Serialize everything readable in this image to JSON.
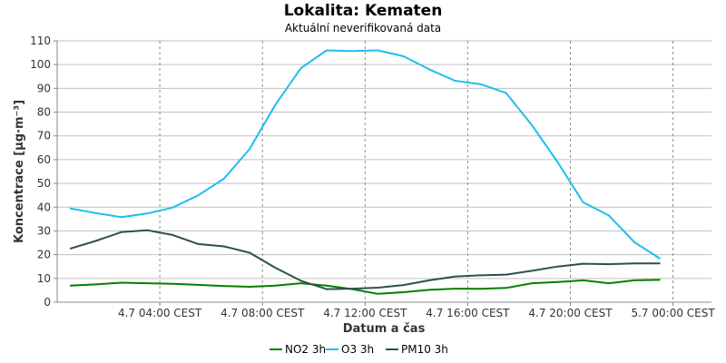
{
  "chart_data": {
    "type": "line",
    "title": "Lokalita: Kematen",
    "subtitle": "Aktuální neverifikovaná data",
    "xlabel": "Datum a čas",
    "ylabel": "Koncentrace [µg·m⁻³]",
    "ylim": [
      0,
      110
    ],
    "yticks": [
      0,
      10,
      20,
      30,
      40,
      50,
      60,
      70,
      80,
      90,
      100,
      110
    ],
    "xlim": [
      "2024-07-04 00:00",
      "2024-07-05 01:30"
    ],
    "xticks": [
      {
        "x": "2024-07-04 04:00",
        "label": "4.7 04:00 CEST"
      },
      {
        "x": "2024-07-04 08:00",
        "label": "4.7 08:00 CEST"
      },
      {
        "x": "2024-07-04 12:00",
        "label": "4.7 12:00 CEST"
      },
      {
        "x": "2024-07-04 16:00",
        "label": "4.7 16:00 CEST"
      },
      {
        "x": "2024-07-04 20:00",
        "label": "4.7 20:00 CEST"
      },
      {
        "x": "2024-07-05 00:00",
        "label": "5.7 00:00 CEST"
      }
    ],
    "grid": true,
    "legend_position": "bottom",
    "x": [
      "2024-07-04 00:30",
      "2024-07-04 01:30",
      "2024-07-04 02:30",
      "2024-07-04 03:30",
      "2024-07-04 04:30",
      "2024-07-04 05:30",
      "2024-07-04 06:30",
      "2024-07-04 07:30",
      "2024-07-04 08:30",
      "2024-07-04 09:30",
      "2024-07-04 10:30",
      "2024-07-04 11:30",
      "2024-07-04 12:30",
      "2024-07-04 13:30",
      "2024-07-04 14:30",
      "2024-07-04 15:30",
      "2024-07-04 16:30",
      "2024-07-04 17:30",
      "2024-07-04 18:30",
      "2024-07-04 19:30",
      "2024-07-04 20:30",
      "2024-07-04 21:30",
      "2024-07-04 22:30",
      "2024-07-04 23:30",
      "2024-07-05 00:30"
    ],
    "series": [
      {
        "name": "NO2 3h",
        "color": "#008000",
        "values": [
          7,
          7.5,
          8.2,
          8,
          7.7,
          7.3,
          6.8,
          6.5,
          7,
          8,
          7,
          5.5,
          3.5,
          4.2,
          5.2,
          5.7,
          5.6,
          6,
          8,
          8.5,
          9.2,
          8,
          9.2,
          9.4,
          null
        ]
      },
      {
        "name": "O3 3h",
        "color": "#1EBEF0",
        "values": [
          39.5,
          37.5,
          35.8,
          37.3,
          39.8,
          45,
          52,
          64.5,
          83,
          98.5,
          106,
          105.7,
          106,
          103.5,
          98,
          93.2,
          91.8,
          88,
          74.5,
          59,
          42,
          36.5,
          25.2,
          18.3,
          null
        ]
      },
      {
        "name": "PM10 3h",
        "color": "#2F4F4F",
        "values": [
          22.5,
          25.8,
          29.5,
          30.3,
          28.3,
          24.5,
          23.5,
          20.8,
          14.5,
          9,
          5.5,
          5.7,
          6.1,
          7.2,
          9.2,
          10.8,
          11.3,
          11.6,
          13.2,
          15,
          16.2,
          16,
          16.3,
          16.3,
          null
        ]
      }
    ]
  }
}
